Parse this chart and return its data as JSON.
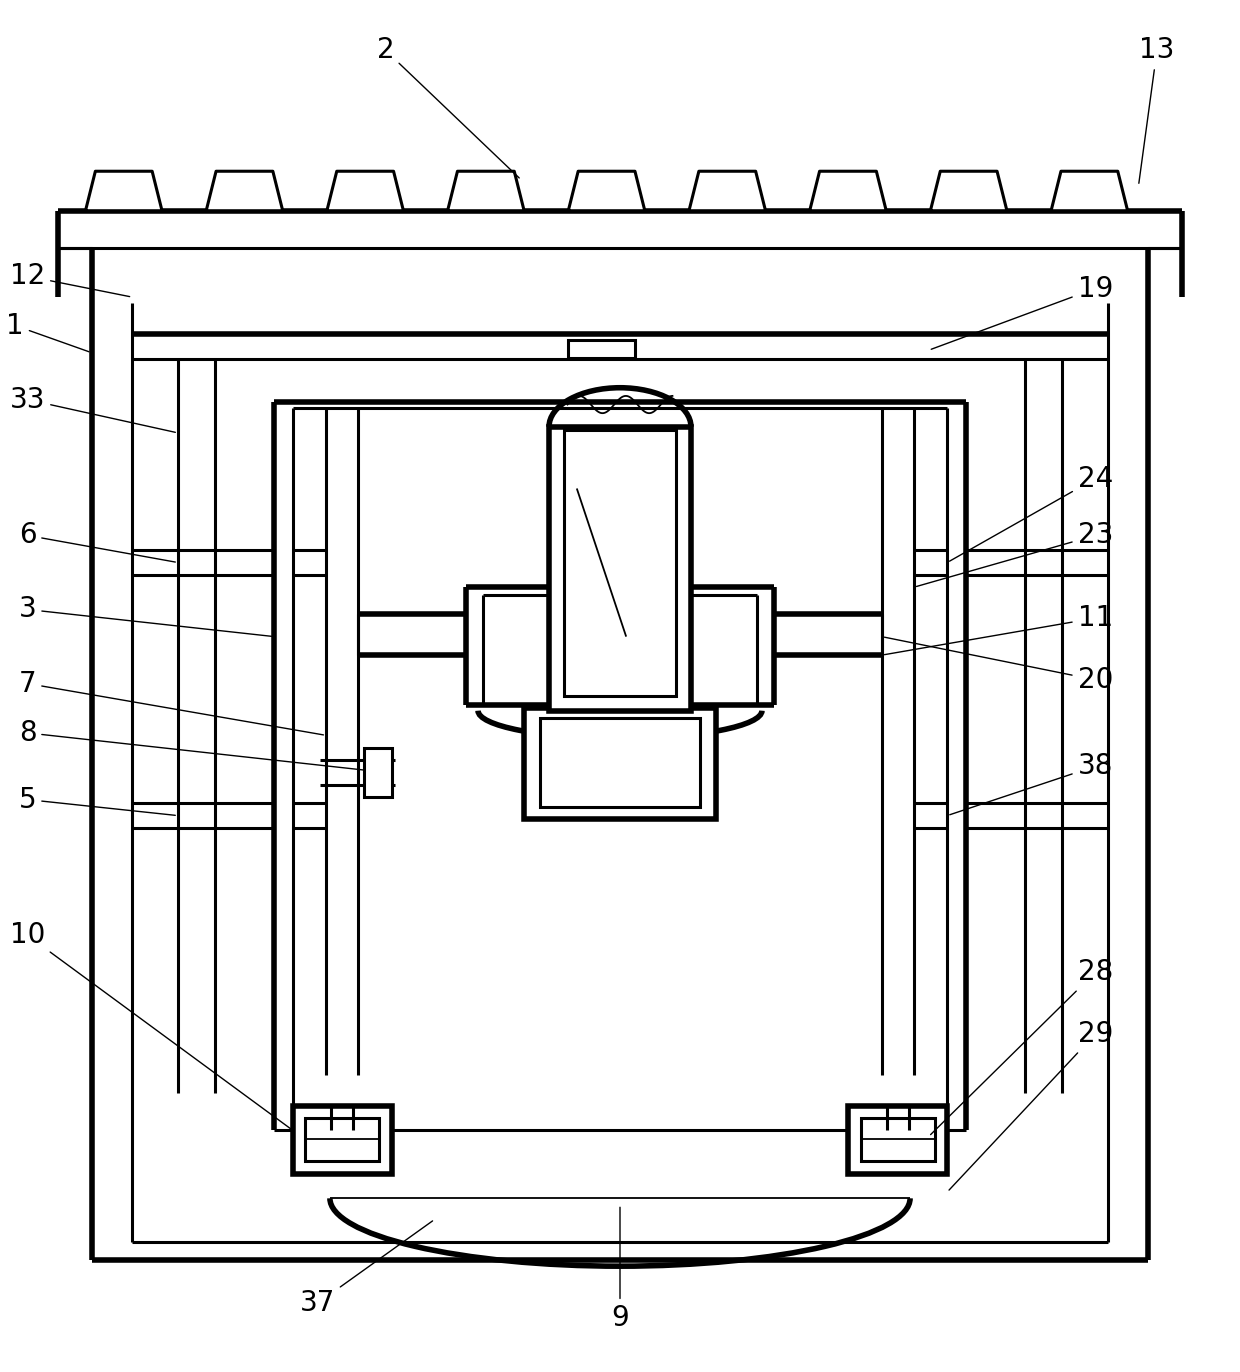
{
  "bg_color": "#ffffff",
  "line_color": "#000000",
  "lw_thick": 4.0,
  "lw_medium": 2.2,
  "lw_thin": 1.3,
  "fig_width": 12.4,
  "fig_height": 13.72,
  "label_fs": 20
}
